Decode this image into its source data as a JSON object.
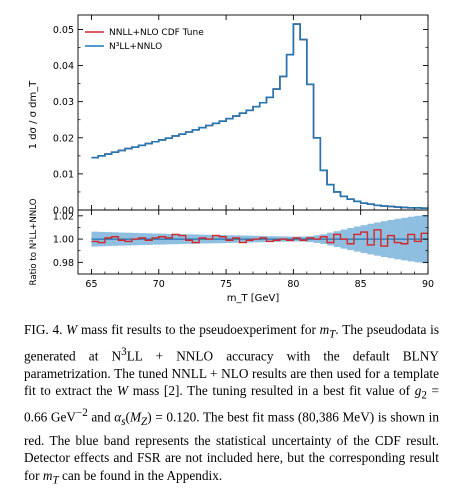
{
  "chart_data": [
    {
      "type": "line",
      "xlim": [
        64,
        90
      ],
      "ylim": [
        0,
        0.054
      ],
      "yticks": [
        "0.00",
        "0.01",
        "0.02",
        "0.03",
        "0.04",
        "0.05"
      ],
      "ylabel": "1 dσ / σ dm_T",
      "legend": {
        "placement": "top-left",
        "entries": [
          {
            "name": "NNLL+NLO CDF Tune",
            "color": "#d62728"
          },
          {
            "name": "N³LL+NNLO",
            "color": "#1f77b4"
          }
        ]
      },
      "bin_width": 0.5,
      "x": [
        65.0,
        65.5,
        66.0,
        66.5,
        67.0,
        67.5,
        68.0,
        68.5,
        69.0,
        69.5,
        70.0,
        70.5,
        71.0,
        71.5,
        72.0,
        72.5,
        73.0,
        73.5,
        74.0,
        74.5,
        75.0,
        75.5,
        76.0,
        76.5,
        77.0,
        77.5,
        78.0,
        78.5,
        79.0,
        79.5,
        80.0,
        80.5,
        81.0,
        81.5,
        82.0,
        82.5,
        83.0,
        83.5,
        84.0,
        84.5,
        85.0,
        85.5,
        86.0,
        86.5,
        87.0,
        87.5,
        88.0,
        88.5,
        89.0,
        89.5
      ],
      "series": [
        {
          "name": "N³LL+NNLO",
          "values": [
            0.0145,
            0.015,
            0.0155,
            0.016,
            0.0165,
            0.017,
            0.0174,
            0.0179,
            0.0184,
            0.0189,
            0.0194,
            0.0199,
            0.0205,
            0.021,
            0.0216,
            0.0222,
            0.0228,
            0.0234,
            0.024,
            0.0246,
            0.0253,
            0.026,
            0.0268,
            0.0276,
            0.0286,
            0.0297,
            0.0312,
            0.0335,
            0.037,
            0.043,
            0.0515,
            0.0472,
            0.0348,
            0.02,
            0.011,
            0.007,
            0.005,
            0.0038,
            0.003,
            0.0024,
            0.0019,
            0.0016,
            0.0013,
            0.0011,
            0.001,
            0.0008,
            0.0007,
            0.0006,
            0.0006,
            0.0005
          ]
        },
        {
          "name": "NNLL+NLO CDF Tune",
          "values": [
            0.0145,
            0.015,
            0.0155,
            0.016,
            0.0165,
            0.017,
            0.0174,
            0.0179,
            0.0184,
            0.0189,
            0.0194,
            0.0199,
            0.0205,
            0.021,
            0.0216,
            0.0222,
            0.0228,
            0.0234,
            0.024,
            0.0246,
            0.0253,
            0.026,
            0.0268,
            0.0276,
            0.0286,
            0.0297,
            0.0312,
            0.0335,
            0.037,
            0.043,
            0.0515,
            0.0472,
            0.0348,
            0.02,
            0.011,
            0.007,
            0.005,
            0.0038,
            0.003,
            0.0024,
            0.0019,
            0.0016,
            0.0013,
            0.0011,
            0.001,
            0.0008,
            0.0007,
            0.0006,
            0.0006,
            0.0005
          ]
        }
      ]
    },
    {
      "type": "line",
      "xlim": [
        64,
        90
      ],
      "ylim": [
        0.97,
        1.025
      ],
      "xticks": [
        "65",
        "70",
        "75",
        "80",
        "85",
        "90"
      ],
      "yticks": [
        "0.98",
        "1.00",
        "1.02"
      ],
      "xlabel": "m_T [GeV]",
      "ylabel": "Ratio to N³LL+NNLO",
      "band_halfwidth": [
        0.0064,
        0.0062,
        0.006,
        0.0058,
        0.0056,
        0.0055,
        0.0053,
        0.0051,
        0.005,
        0.0048,
        0.0047,
        0.0045,
        0.0044,
        0.0042,
        0.0041,
        0.004,
        0.0038,
        0.0037,
        0.0036,
        0.0035,
        0.0033,
        0.0032,
        0.0031,
        0.003,
        0.0028,
        0.0027,
        0.0025,
        0.0024,
        0.0023,
        0.0022,
        0.0021,
        0.0022,
        0.0025,
        0.0033,
        0.0042,
        0.0055,
        0.0068,
        0.0082,
        0.0095,
        0.0108,
        0.012,
        0.0132,
        0.0143,
        0.0154,
        0.0164,
        0.0174,
        0.0183,
        0.0192,
        0.02,
        0.0207
      ],
      "ratio": [
        0.998,
        0.997,
        1.001,
        1.002,
        0.999,
        0.998,
        1.0,
        1.001,
        0.999,
        1.001,
        1.002,
        1.001,
        1.004,
        1.003,
        0.999,
        0.997,
        1.001,
        1.0,
        1.003,
        1.002,
        0.999,
        1.001,
        0.997,
        0.999,
        1.0,
        1.001,
        0.998,
        0.999,
        1.0,
        0.999,
        1.001,
        0.999,
        1.001,
        1.0,
        1.002,
        0.997,
        1.004,
        1.0,
        0.996,
        1.004,
        1.006,
        0.995,
        1.008,
        0.994,
        1.003,
        0.997,
        0.996,
        1.004,
        0.998,
        1.005
      ]
    }
  ],
  "caption": {
    "part1": "FIG. 4.   ",
    "wmass_symbol": "W",
    "part2": " mass fit results to the pseudoexperiment for ",
    "mt_symbol": "m",
    "mt_sub": "T",
    "part3": ". The pseudodata is generated at N",
    "n_sup": "3",
    "part4": "LL + NNLO accuracy with the default BLNY parametrization. The tuned NNLL + NLO results are then used for a template fit to extract the ",
    "part5": " mass [2]. The tuning resulted in a best fit value of ",
    "g2_symbol": "g",
    "g2_sub": "2",
    "part6": " = 0.66 GeV",
    "gev_sup": "−2",
    "part7": " and ",
    "alpha_symbol": "α",
    "alpha_sub": "s",
    "part8": "(",
    "mz_symbol": "M",
    "mz_sub": "Z",
    "part9": ") = 0.120. The best fit mass (80,386 MeV) is shown in red. The blue band represents the statistical uncertainty of the CDF result. Detector effects and FSR are not included here, but the corresponding result for ",
    "part10": " can be found in the Appendix."
  }
}
